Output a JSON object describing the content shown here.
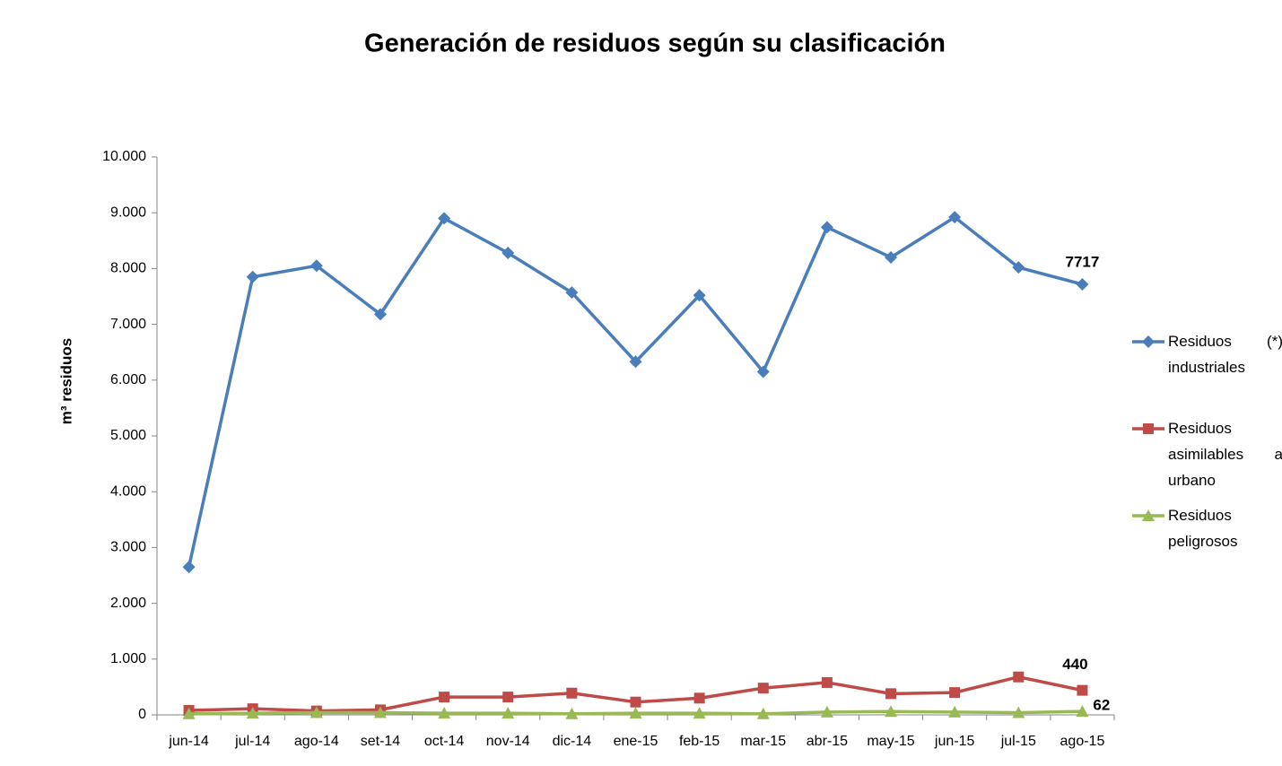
{
  "chart_data": {
    "type": "line",
    "title": "Generación de residuos según su clasificación",
    "y_label": "m³ residuos",
    "categories": [
      "jun-14",
      "jul-14",
      "ago-14",
      "set-14",
      "oct-14",
      "nov-14",
      "dic-14",
      "ene-15",
      "feb-15",
      "mar-15",
      "abr-15",
      "may-15",
      "jun-15",
      "jul-15",
      "ago-15"
    ],
    "series": [
      {
        "name": "Residuos (*) industriales",
        "color": "#4a7ebb",
        "marker": "diamond",
        "values": [
          2650,
          7850,
          8050,
          7180,
          8900,
          8280,
          7570,
          6330,
          7520,
          6150,
          8740,
          8200,
          8920,
          8020,
          7717
        ]
      },
      {
        "name": "Residuos asimilables a urbano",
        "color": "#be4b48",
        "marker": "square",
        "values": [
          80,
          110,
          70,
          90,
          320,
          320,
          390,
          230,
          300,
          480,
          580,
          380,
          400,
          680,
          440
        ]
      },
      {
        "name": "Residuos peligrosos",
        "color": "#98b954",
        "marker": "triangle",
        "values": [
          20,
          30,
          40,
          40,
          30,
          30,
          20,
          30,
          30,
          20,
          50,
          60,
          50,
          40,
          62
        ]
      }
    ],
    "ylim": [
      0,
      10000
    ],
    "yticks": [
      0,
      {
        "value": 1000,
        "label": "1.000"
      },
      {
        "value": 2000,
        "label": "2.000"
      },
      {
        "value": 3000,
        "label": "3.000"
      },
      {
        "value": 4000,
        "label": "4.000"
      },
      {
        "value": 5000,
        "label": "5.000"
      },
      {
        "value": 6000,
        "label": "6.000"
      },
      {
        "value": 7000,
        "label": "7.000"
      },
      {
        "value": 8000,
        "label": "8.000"
      },
      {
        "value": 9000,
        "label": "9.000"
      },
      {
        "value": 10000,
        "label": "10.000"
      }
    ],
    "grid": false,
    "legend": "right"
  }
}
